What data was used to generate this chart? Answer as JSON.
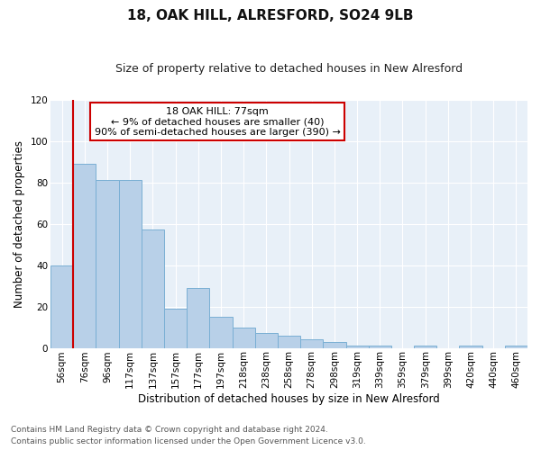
{
  "title": "18, OAK HILL, ALRESFORD, SO24 9LB",
  "subtitle": "Size of property relative to detached houses in New Alresford",
  "xlabel": "Distribution of detached houses by size in New Alresford",
  "ylabel": "Number of detached properties",
  "bar_labels": [
    "56sqm",
    "76sqm",
    "96sqm",
    "117sqm",
    "137sqm",
    "157sqm",
    "177sqm",
    "197sqm",
    "218sqm",
    "238sqm",
    "258sqm",
    "278sqm",
    "298sqm",
    "319sqm",
    "339sqm",
    "359sqm",
    "379sqm",
    "399sqm",
    "420sqm",
    "440sqm",
    "460sqm"
  ],
  "bar_values": [
    40,
    89,
    81,
    81,
    57,
    19,
    29,
    15,
    10,
    7,
    6,
    4,
    3,
    1,
    1,
    0,
    1,
    0,
    1,
    0,
    1
  ],
  "bar_color": "#b8d0e8",
  "bar_edge_color": "#7aafd4",
  "vline_color": "#cc0000",
  "annotation_text": "18 OAK HILL: 77sqm\n← 9% of detached houses are smaller (40)\n90% of semi-detached houses are larger (390) →",
  "annotation_box_color": "#ffffff",
  "annotation_box_edge": "#cc0000",
  "ylim": [
    0,
    120
  ],
  "yticks": [
    0,
    20,
    40,
    60,
    80,
    100,
    120
  ],
  "bg_color": "#ffffff",
  "plot_bg_color": "#e8f0f8",
  "grid_color": "#ffffff",
  "footer_line1": "Contains HM Land Registry data © Crown copyright and database right 2024.",
  "footer_line2": "Contains public sector information licensed under the Open Government Licence v3.0.",
  "title_fontsize": 11,
  "subtitle_fontsize": 9,
  "axis_label_fontsize": 8.5,
  "tick_fontsize": 7.5,
  "annotation_fontsize": 8,
  "footer_fontsize": 6.5
}
